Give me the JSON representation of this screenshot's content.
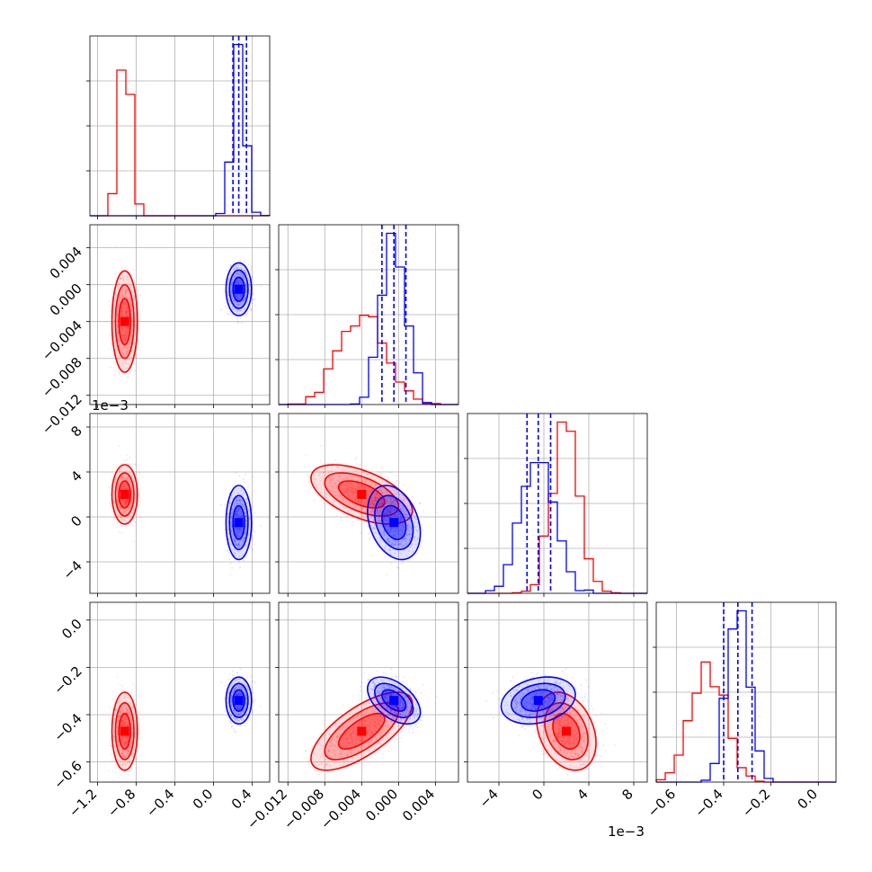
{
  "chart_data": {
    "type": "corner",
    "series": [
      {
        "name": "",
        "color": "#ff0000",
        "mean": [
          -0.92,
          -0.004,
          0.002,
          -0.47
        ],
        "sd": [
          0.06,
          0.0025,
          0.0012,
          0.075
        ],
        "corr": [
          [
            1,
            0,
            0,
            0
          ],
          [
            0,
            1,
            -0.55,
            0.7
          ],
          [
            0,
            -0.55,
            1,
            -0.3
          ],
          [
            0,
            0.7,
            -0.3,
            1
          ]
        ]
      },
      {
        "name": "",
        "color": "#0000ff",
        "mean": [
          0.26,
          -0.0005,
          -0.0005,
          -0.34
        ],
        "sd": [
          0.06,
          0.0013,
          0.0015,
          0.045
        ],
        "corr": [
          [
            1,
            0,
            0,
            0
          ],
          [
            0,
            1,
            -0.3,
            -0.5
          ],
          [
            0,
            -0.3,
            1,
            0.25
          ],
          [
            0,
            -0.5,
            0.25,
            1
          ]
        ]
      }
    ],
    "truth_quantiles": [
      {
        "values": [
          0.2,
          0.26,
          0.34
        ]
      },
      {
        "values": [
          -0.0018,
          -0.0005,
          0.0008
        ]
      },
      {
        "values": [
          -0.0015,
          -0.0005,
          0.0006
        ]
      },
      {
        "values": [
          -0.4,
          -0.34,
          -0.28
        ]
      }
    ],
    "ranges": [
      [
        -1.28,
        0.58
      ],
      [
        -0.013,
        0.0065
      ],
      [
        -0.0068,
        0.0092
      ],
      [
        -0.685,
        0.075
      ]
    ],
    "axis_ticks": {
      "x": [
        {
          "values": [
            -1.2,
            -0.8,
            -0.4,
            0.0,
            0.4
          ],
          "labels": [
            "−1.2",
            "−0.8",
            "−0.4",
            "0.0",
            "0.4"
          ]
        },
        {
          "values": [
            -0.012,
            -0.008,
            -0.004,
            0.0,
            0.004
          ],
          "labels": [
            "−0.012",
            "−0.008",
            "−0.004",
            "0.000",
            "0.004"
          ]
        },
        {
          "values": [
            -0.004,
            0.0,
            0.004,
            0.008
          ],
          "labels": [
            "−4",
            "0",
            "4",
            "8"
          ]
        },
        {
          "values": [
            -0.6,
            -0.4,
            -0.2,
            0.0
          ],
          "labels": [
            "−0.6",
            "−0.4",
            "−0.2",
            "0.0"
          ]
        }
      ],
      "y": [
        null,
        {
          "values": [
            -0.012,
            -0.008,
            -0.004,
            0.0,
            0.004
          ],
          "labels": [
            "−0.012",
            "−0.008",
            "−0.004",
            "0.000",
            "0.004"
          ]
        },
        {
          "values": [
            -0.004,
            0.0,
            0.004,
            0.008
          ],
          "labels": [
            "−4",
            "0",
            "4",
            "8"
          ]
        },
        {
          "values": [
            -0.6,
            -0.4,
            -0.2,
            0.0
          ],
          "labels": [
            "−0.6",
            "−0.4",
            "−0.2",
            "0.0"
          ]
        }
      ]
    },
    "offset_labels": {
      "y_row3": "1e−3",
      "x_col3": "1e−3"
    },
    "grid": true,
    "legend": "none"
  }
}
